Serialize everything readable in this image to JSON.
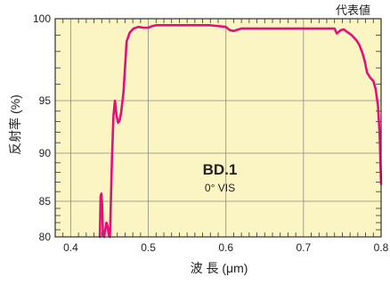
{
  "chart_data": {
    "type": "line",
    "title": "",
    "xlabel": "波 長 (μm)",
    "ylabel": "反射率 (%)",
    "note": "代表値",
    "annotation_title": "BD.1",
    "annotation_subtitle": "0° VIS",
    "xlim": [
      0.38,
      0.8
    ],
    "ylim": [
      80,
      100
    ],
    "x_ticks": [
      0.4,
      0.5,
      0.6,
      0.7,
      0.8
    ],
    "x_tick_labels": [
      "0.4",
      "0.5",
      "0.6",
      "0.7",
      "0.8"
    ],
    "y_ticks": [
      80,
      85,
      90,
      95,
      100
    ],
    "y_tick_labels": [
      "80",
      "85",
      "90",
      "95",
      "100"
    ],
    "y_scale": "mixed: 80–95 compressed, 95–100 expanded",
    "y_minor_ticks": [
      81,
      82,
      83,
      84,
      86,
      87,
      88,
      89,
      91,
      92,
      93,
      94,
      96,
      97,
      98,
      99
    ],
    "x_minor_ticks": [
      0.39,
      0.41,
      0.42,
      0.43,
      0.44,
      0.45,
      0.46,
      0.47,
      0.48,
      0.49,
      0.51,
      0.52,
      0.53,
      0.54,
      0.55,
      0.56,
      0.57,
      0.58,
      0.59,
      0.61,
      0.62,
      0.63,
      0.64,
      0.65,
      0.66,
      0.67,
      0.68,
      0.69,
      0.71,
      0.72,
      0.73,
      0.74,
      0.75,
      0.76,
      0.77,
      0.78,
      0.79
    ],
    "grid": true,
    "colors": {
      "background": "#fbf5c4",
      "line": "#e0127a",
      "grid": "#8a8a7a",
      "axis": "#333333"
    },
    "series": [
      {
        "name": "",
        "x": [
          0.4375,
          0.4385,
          0.4395,
          0.4405,
          0.4415,
          0.443,
          0.4445,
          0.446,
          0.4475,
          0.449,
          0.4505,
          0.4515,
          0.453,
          0.455,
          0.457,
          0.459,
          0.461,
          0.463,
          0.465,
          0.468,
          0.472,
          0.476,
          0.481,
          0.487,
          0.494,
          0.5,
          0.505,
          0.51,
          0.52,
          0.55,
          0.58,
          0.6,
          0.605,
          0.61,
          0.62,
          0.65,
          0.7,
          0.74,
          0.743,
          0.748,
          0.752,
          0.756,
          0.762,
          0.768,
          0.772,
          0.776,
          0.779,
          0.782,
          0.786,
          0.79,
          0.793,
          0.796,
          0.798,
          0.8
        ],
        "y": [
          80.0,
          85.5,
          85.8,
          84.5,
          80.5,
          80.0,
          81.0,
          82.0,
          81.5,
          80.3,
          80.0,
          84.0,
          89.0,
          93.5,
          95.0,
          93.6,
          92.9,
          93.1,
          93.9,
          95.5,
          98.6,
          99.15,
          99.4,
          99.5,
          99.45,
          99.45,
          99.55,
          99.6,
          99.6,
          99.6,
          99.6,
          99.5,
          99.3,
          99.25,
          99.4,
          99.4,
          99.4,
          99.4,
          99.1,
          99.3,
          99.35,
          99.2,
          99.0,
          98.7,
          98.4,
          97.9,
          97.4,
          96.7,
          96.4,
          96.2,
          95.7,
          94.5,
          92.0,
          86.8
        ]
      }
    ]
  }
}
